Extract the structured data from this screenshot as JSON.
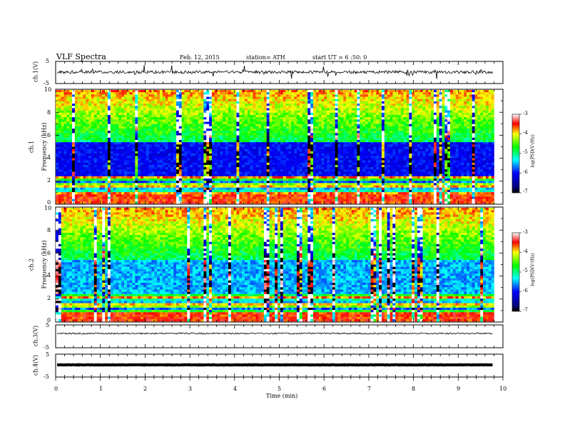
{
  "header": {
    "title": "VLF Spectra",
    "date": "Feb. 12, 2015",
    "station": "station= ATH",
    "start": "start UT =  6 :50: 0"
  },
  "chart_data": [
    {
      "type": "line",
      "panel": "ch1-waveform",
      "ylabel": "ch.1(V)",
      "ylim": [
        -5,
        5
      ],
      "yticks": [
        "5",
        "-5"
      ],
      "xlim": [
        0,
        10
      ],
      "baseline_v": 0,
      "color": "#000000"
    },
    {
      "type": "heatmap",
      "panel": "ch1-spectrogram",
      "ylabel_channel": "ch.1",
      "ylabel": "Frequency (kHz)",
      "ylim": [
        0,
        10
      ],
      "yticks": [
        "10",
        "8",
        "6",
        "4",
        "2",
        "0"
      ],
      "xlim": [
        0,
        9.8
      ],
      "colorbar": {
        "label": "log(PSD(V²/Hz)",
        "range": [
          -7,
          -3
        ],
        "ticks": [
          "-3",
          "-4",
          "-5",
          "-6",
          "-7"
        ]
      }
    },
    {
      "type": "heatmap",
      "panel": "ch2-spectrogram",
      "ylabel_channel": "ch.2",
      "ylabel": "Frequency (kHz)",
      "ylim": [
        0,
        10
      ],
      "yticks": [
        "10",
        "8",
        "6",
        "4",
        "2",
        "0"
      ],
      "xlim": [
        0,
        9.8
      ],
      "colorbar": {
        "label": "log(PSD(V²/Hz)",
        "range": [
          -7,
          -3
        ],
        "ticks": [
          "-3",
          "-4",
          "-5",
          "-6",
          "-7"
        ]
      }
    },
    {
      "type": "line",
      "panel": "ch3-waveform",
      "ylabel": "ch.3(V)",
      "ylim": [
        -5,
        5
      ],
      "yticks": [
        "5",
        "-5"
      ],
      "baseline_v": 0,
      "color": "#000000"
    },
    {
      "type": "line",
      "panel": "ch4-waveform",
      "ylabel": "ch.4(V)",
      "ylim": [
        -5,
        5
      ],
      "yticks": [
        "5",
        "-5"
      ],
      "baseline_v": 0,
      "color": "#000000"
    }
  ],
  "xaxis": {
    "label": "Time (min)",
    "range": [
      0,
      10
    ],
    "ticks": [
      "0",
      "1",
      "2",
      "3",
      "4",
      "5",
      "6",
      "7",
      "8",
      "9",
      "10"
    ]
  }
}
